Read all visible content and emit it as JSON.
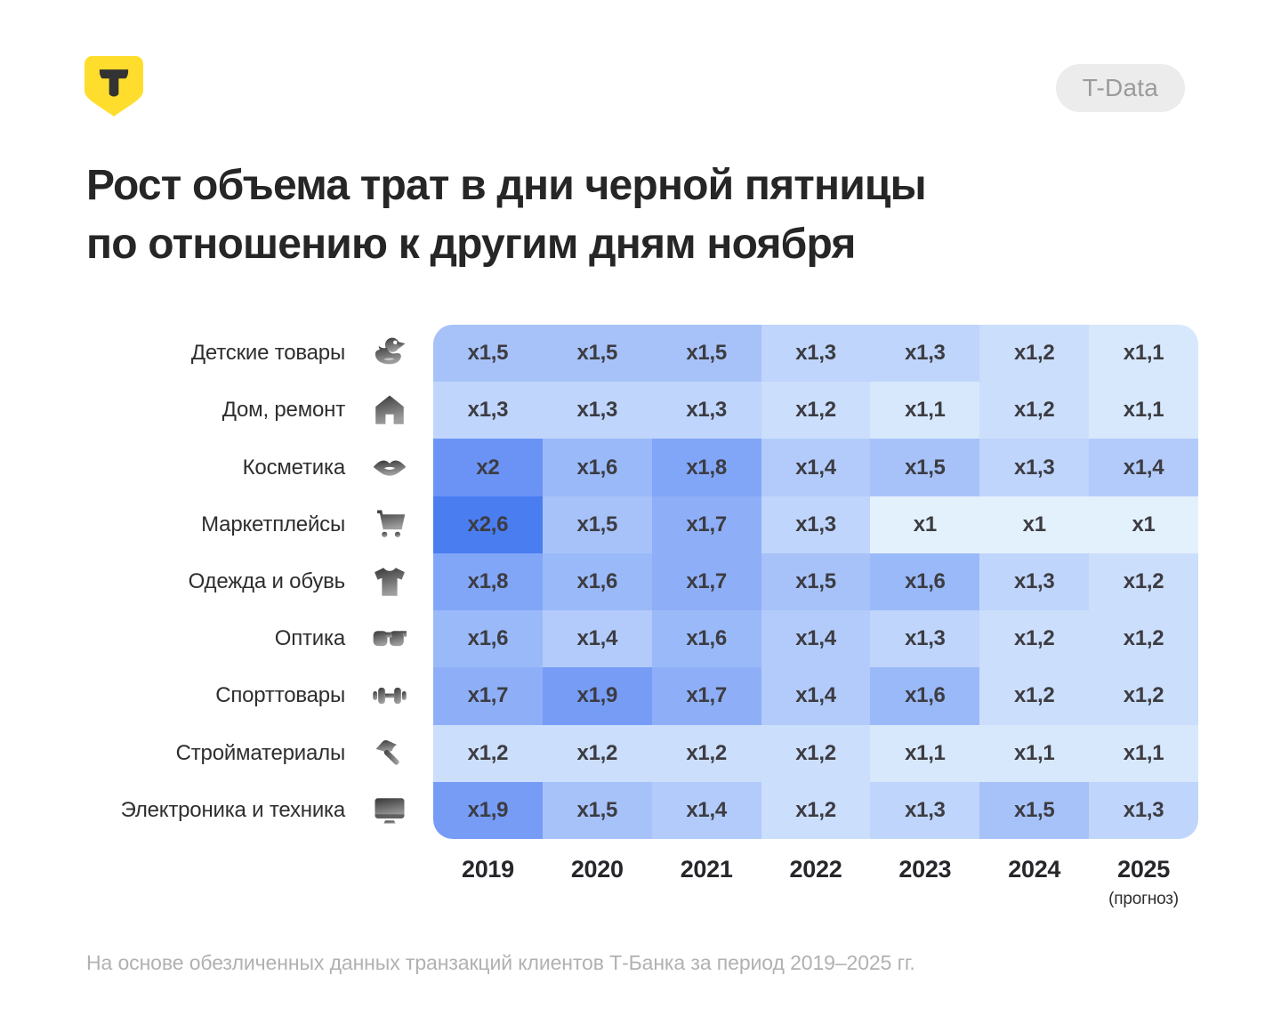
{
  "header": {
    "badge": "T-Data"
  },
  "title": {
    "line1": "Рост объема трат в дни черной пятницы",
    "line2": "по отношению к другим дням ноября"
  },
  "chart_data": {
    "type": "heatmap",
    "title": "Рост объема трат в дни черной пятницы по отношению к другим дням ноября",
    "x": [
      "2019",
      "2020",
      "2021",
      "2022",
      "2023",
      "2024",
      "2025"
    ],
    "x_note": {
      "index": 6,
      "label": "(прогноз)"
    },
    "legend": "none",
    "grid": "off",
    "rows": [
      {
        "label": "Детские товары",
        "icon": "duck-icon",
        "values": [
          1.5,
          1.5,
          1.5,
          1.3,
          1.3,
          1.2,
          1.1
        ],
        "display": [
          "x1,5",
          "x1,5",
          "x1,5",
          "x1,3",
          "x1,3",
          "x1,2",
          "x1,1"
        ]
      },
      {
        "label": "Дом, ремонт",
        "icon": "house-icon",
        "values": [
          1.3,
          1.3,
          1.3,
          1.2,
          1.1,
          1.2,
          1.1
        ],
        "display": [
          "x1,3",
          "x1,3",
          "x1,3",
          "x1,2",
          "x1,1",
          "x1,2",
          "x1,1"
        ]
      },
      {
        "label": "Косметика",
        "icon": "lips-icon",
        "values": [
          2.0,
          1.6,
          1.8,
          1.4,
          1.5,
          1.3,
          1.4
        ],
        "display": [
          "x2",
          "x1,6",
          "x1,8",
          "x1,4",
          "x1,5",
          "x1,3",
          "x1,4"
        ]
      },
      {
        "label": "Маркетплейсы",
        "icon": "cart-icon",
        "values": [
          2.6,
          1.5,
          1.7,
          1.3,
          1.0,
          1.0,
          1.0
        ],
        "display": [
          "x2,6",
          "x1,5",
          "x1,7",
          "x1,3",
          "x1",
          "x1",
          "x1"
        ]
      },
      {
        "label": "Одежда и обувь",
        "icon": "tshirt-icon",
        "values": [
          1.8,
          1.6,
          1.7,
          1.5,
          1.6,
          1.3,
          1.2
        ],
        "display": [
          "x1,8",
          "x1,6",
          "x1,7",
          "x1,5",
          "x1,6",
          "x1,3",
          "x1,2"
        ]
      },
      {
        "label": "Оптика",
        "icon": "goggles-icon",
        "values": [
          1.6,
          1.4,
          1.6,
          1.4,
          1.3,
          1.2,
          1.2
        ],
        "display": [
          "x1,6",
          "x1,4",
          "x1,6",
          "x1,4",
          "x1,3",
          "x1,2",
          "x1,2"
        ]
      },
      {
        "label": "Спорттовары",
        "icon": "dumbbell-icon",
        "values": [
          1.7,
          1.9,
          1.7,
          1.4,
          1.6,
          1.2,
          1.2
        ],
        "display": [
          "x1,7",
          "x1,9",
          "x1,7",
          "x1,4",
          "x1,6",
          "x1,2",
          "x1,2"
        ]
      },
      {
        "label": "Стройматериалы",
        "icon": "hammer-icon",
        "values": [
          1.2,
          1.2,
          1.2,
          1.2,
          1.1,
          1.1,
          1.1
        ],
        "display": [
          "x1,2",
          "x1,2",
          "x1,2",
          "x1,2",
          "x1,1",
          "x1,1",
          "x1,1"
        ]
      },
      {
        "label": "Электроника и техника",
        "icon": "monitor-icon",
        "values": [
          1.9,
          1.5,
          1.4,
          1.2,
          1.3,
          1.5,
          1.3
        ],
        "display": [
          "x1,9",
          "x1,5",
          "x1,4",
          "x1,2",
          "x1,3",
          "x1,5",
          "x1,3"
        ]
      }
    ],
    "color_scale": {
      "stops": [
        {
          "value": 1.0,
          "color": "#E3F1FD"
        },
        {
          "value": 2.0,
          "color": "#6A93F5"
        },
        {
          "value": 2.6,
          "color": "#4A7DF0"
        }
      ]
    }
  },
  "footer": {
    "source": "На основе обезличенных данных транзакций клиентов Т-Банка за период 2019–2025 гг."
  },
  "colors": {
    "brand_yellow": "#FFDD2D",
    "badge_bg": "#ECECEC",
    "badge_text": "#9B9B9B",
    "title_text": "#262626",
    "cell_text": "#3C3C42",
    "footer_text": "#B1B1B1"
  }
}
